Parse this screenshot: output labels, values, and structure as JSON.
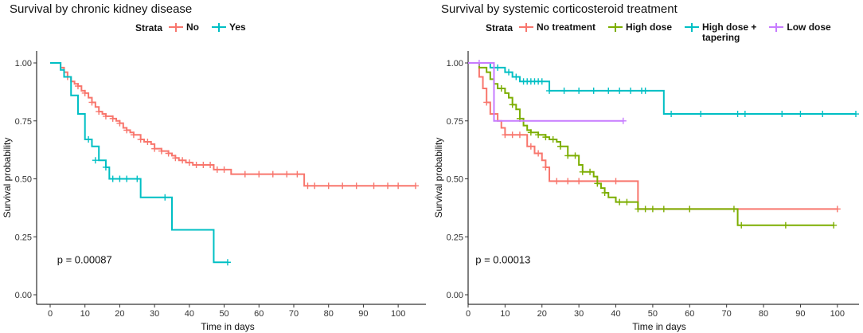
{
  "chart_data": [
    {
      "type": "line",
      "subtype": "kaplan-meier",
      "title": "Survival by chronic kidney disease",
      "legend_title": "Strata",
      "legend_position": "top",
      "xlabel": "Time in days",
      "ylabel": "Survival probability",
      "xlim": [
        0,
        105
      ],
      "ylim": [
        0,
        1
      ],
      "x_ticks": [
        0,
        10,
        20,
        30,
        40,
        50,
        60,
        70,
        80,
        90,
        100
      ],
      "y_ticks": [
        0,
        0.25,
        0.5,
        0.75,
        1.0
      ],
      "y_tick_labels": [
        "0.00",
        "0.25",
        "0.50",
        "0.75",
        "1.00"
      ],
      "p_value_text": "p = 0.00087",
      "p_value_position": [
        2,
        0.15
      ],
      "series": [
        {
          "name": "No",
          "color": "#f8766d",
          "x": [
            0,
            3,
            4,
            5,
            6,
            7,
            8,
            9,
            10,
            11,
            12,
            13,
            14,
            15,
            16,
            17,
            18,
            19,
            20,
            21,
            22,
            23,
            24,
            25,
            26,
            27,
            28,
            29,
            30,
            31,
            32,
            33,
            34,
            35,
            36,
            37,
            38,
            39,
            40,
            41,
            42,
            43,
            44,
            45,
            46,
            47,
            48,
            49,
            50,
            51,
            52,
            53,
            60,
            70,
            72,
            73,
            105
          ],
          "y": [
            1.0,
            0.98,
            0.96,
            0.94,
            0.92,
            0.91,
            0.9,
            0.88,
            0.87,
            0.85,
            0.83,
            0.81,
            0.79,
            0.78,
            0.77,
            0.77,
            0.76,
            0.75,
            0.74,
            0.72,
            0.71,
            0.7,
            0.69,
            0.69,
            0.67,
            0.66,
            0.66,
            0.65,
            0.63,
            0.63,
            0.62,
            0.62,
            0.61,
            0.6,
            0.59,
            0.58,
            0.58,
            0.57,
            0.57,
            0.56,
            0.56,
            0.56,
            0.56,
            0.56,
            0.56,
            0.54,
            0.54,
            0.54,
            0.54,
            0.54,
            0.52,
            0.52,
            0.52,
            0.52,
            0.52,
            0.47,
            0.47
          ],
          "censor_x": [
            5,
            8,
            10,
            12,
            14,
            16,
            18,
            20,
            22,
            24,
            26,
            28,
            30,
            32,
            34,
            36,
            38,
            40,
            42,
            44,
            46,
            48,
            50,
            56,
            60,
            64,
            68,
            71,
            74,
            76,
            80,
            84,
            88,
            93,
            97,
            100,
            105
          ],
          "censor_y": [
            0.94,
            0.9,
            0.87,
            0.83,
            0.79,
            0.77,
            0.76,
            0.74,
            0.71,
            0.69,
            0.67,
            0.66,
            0.63,
            0.62,
            0.61,
            0.59,
            0.58,
            0.57,
            0.56,
            0.56,
            0.56,
            0.54,
            0.54,
            0.52,
            0.52,
            0.52,
            0.52,
            0.52,
            0.47,
            0.47,
            0.47,
            0.47,
            0.47,
            0.47,
            0.47,
            0.47,
            0.47
          ]
        },
        {
          "name": "Yes",
          "color": "#00bfc4",
          "x": [
            0,
            3,
            4,
            6,
            8,
            10,
            12,
            14,
            16,
            17,
            26,
            35,
            47,
            51
          ],
          "y": [
            1.0,
            0.97,
            0.94,
            0.86,
            0.78,
            0.67,
            0.64,
            0.58,
            0.55,
            0.5,
            0.42,
            0.28,
            0.14,
            0.14
          ],
          "censor_x": [
            11,
            13,
            16,
            18,
            20,
            22,
            25,
            33,
            51
          ],
          "censor_y": [
            0.67,
            0.58,
            0.55,
            0.5,
            0.5,
            0.5,
            0.5,
            0.42,
            0.14
          ]
        }
      ]
    },
    {
      "type": "line",
      "subtype": "kaplan-meier",
      "title": "Survival by systemic corticosteroid treatment",
      "legend_title": "Strata",
      "legend_position": "top",
      "xlabel": "Time in days",
      "ylabel": "Survival probability",
      "xlim": [
        0,
        105
      ],
      "ylim": [
        0,
        1
      ],
      "x_ticks": [
        0,
        10,
        20,
        30,
        40,
        50,
        60,
        70,
        80,
        90,
        100
      ],
      "y_ticks": [
        0,
        0.25,
        0.5,
        0.75,
        1.0
      ],
      "y_tick_labels": [
        "0.00",
        "0.25",
        "0.50",
        "0.75",
        "1.00"
      ],
      "p_value_text": "p = 0.00013",
      "p_value_position": [
        2,
        0.15
      ],
      "series": [
        {
          "name": "No treatment",
          "color": "#f8766d",
          "x": [
            0,
            3,
            4,
            5,
            6,
            8,
            9,
            10,
            11,
            13,
            16,
            18,
            20,
            21,
            22,
            46,
            100
          ],
          "y": [
            1.0,
            0.94,
            0.89,
            0.83,
            0.78,
            0.75,
            0.72,
            0.69,
            0.69,
            0.69,
            0.64,
            0.61,
            0.58,
            0.55,
            0.49,
            0.37,
            0.37
          ],
          "censor_x": [
            5,
            10,
            12,
            14,
            17,
            19,
            21,
            24,
            27,
            30,
            35,
            40,
            60,
            100
          ],
          "censor_y": [
            0.83,
            0.69,
            0.69,
            0.69,
            0.64,
            0.61,
            0.55,
            0.49,
            0.49,
            0.49,
            0.49,
            0.49,
            0.37,
            0.37
          ]
        },
        {
          "name": "High dose",
          "color": "#7cae00",
          "x": [
            0,
            3,
            5,
            6,
            7,
            8,
            9,
            10,
            11,
            12,
            13,
            14,
            15,
            16,
            17,
            18,
            19,
            20,
            21,
            22,
            23,
            24,
            25,
            26,
            27,
            28,
            29,
            30,
            31,
            32,
            34,
            35,
            36,
            37,
            38,
            40,
            42,
            44,
            46,
            73,
            99
          ],
          "y": [
            1.0,
            0.98,
            0.96,
            0.93,
            0.91,
            0.89,
            0.89,
            0.87,
            0.85,
            0.82,
            0.8,
            0.76,
            0.73,
            0.71,
            0.7,
            0.7,
            0.69,
            0.69,
            0.68,
            0.67,
            0.67,
            0.66,
            0.64,
            0.64,
            0.6,
            0.6,
            0.6,
            0.56,
            0.53,
            0.53,
            0.51,
            0.48,
            0.46,
            0.44,
            0.42,
            0.4,
            0.4,
            0.4,
            0.37,
            0.3,
            0.3
          ],
          "censor_x": [
            9,
            12,
            14,
            17,
            19,
            21,
            23,
            25,
            27,
            29,
            31,
            33,
            35,
            37,
            41,
            43,
            46,
            48,
            50,
            53,
            60,
            72,
            74,
            86,
            99
          ],
          "censor_y": [
            0.89,
            0.82,
            0.76,
            0.7,
            0.69,
            0.68,
            0.67,
            0.64,
            0.6,
            0.6,
            0.53,
            0.53,
            0.48,
            0.44,
            0.4,
            0.4,
            0.37,
            0.37,
            0.37,
            0.37,
            0.37,
            0.37,
            0.3,
            0.3,
            0.3
          ]
        },
        {
          "name": "High dose +\ntapering",
          "color": "#00bfc4",
          "x": [
            0,
            6,
            10,
            12,
            14,
            22,
            53,
            105
          ],
          "y": [
            1.0,
            0.98,
            0.96,
            0.94,
            0.92,
            0.88,
            0.78,
            0.78
          ],
          "censor_x": [
            8,
            11,
            13,
            15,
            16,
            17,
            18,
            19,
            20,
            22,
            26,
            30,
            34,
            38,
            41,
            44,
            47,
            48,
            55,
            63,
            73,
            75,
            85,
            90,
            96,
            105
          ],
          "censor_y": [
            0.98,
            0.96,
            0.94,
            0.92,
            0.92,
            0.92,
            0.92,
            0.92,
            0.92,
            0.88,
            0.88,
            0.88,
            0.88,
            0.88,
            0.88,
            0.88,
            0.88,
            0.88,
            0.78,
            0.78,
            0.78,
            0.78,
            0.78,
            0.78,
            0.78,
            0.78
          ]
        },
        {
          "name": "Low dose",
          "color": "#c77cff",
          "x": [
            0,
            7,
            42
          ],
          "y": [
            1.0,
            0.75,
            0.75
          ],
          "censor_x": [
            3,
            42
          ],
          "censor_y": [
            1.0,
            0.75
          ]
        }
      ]
    }
  ]
}
